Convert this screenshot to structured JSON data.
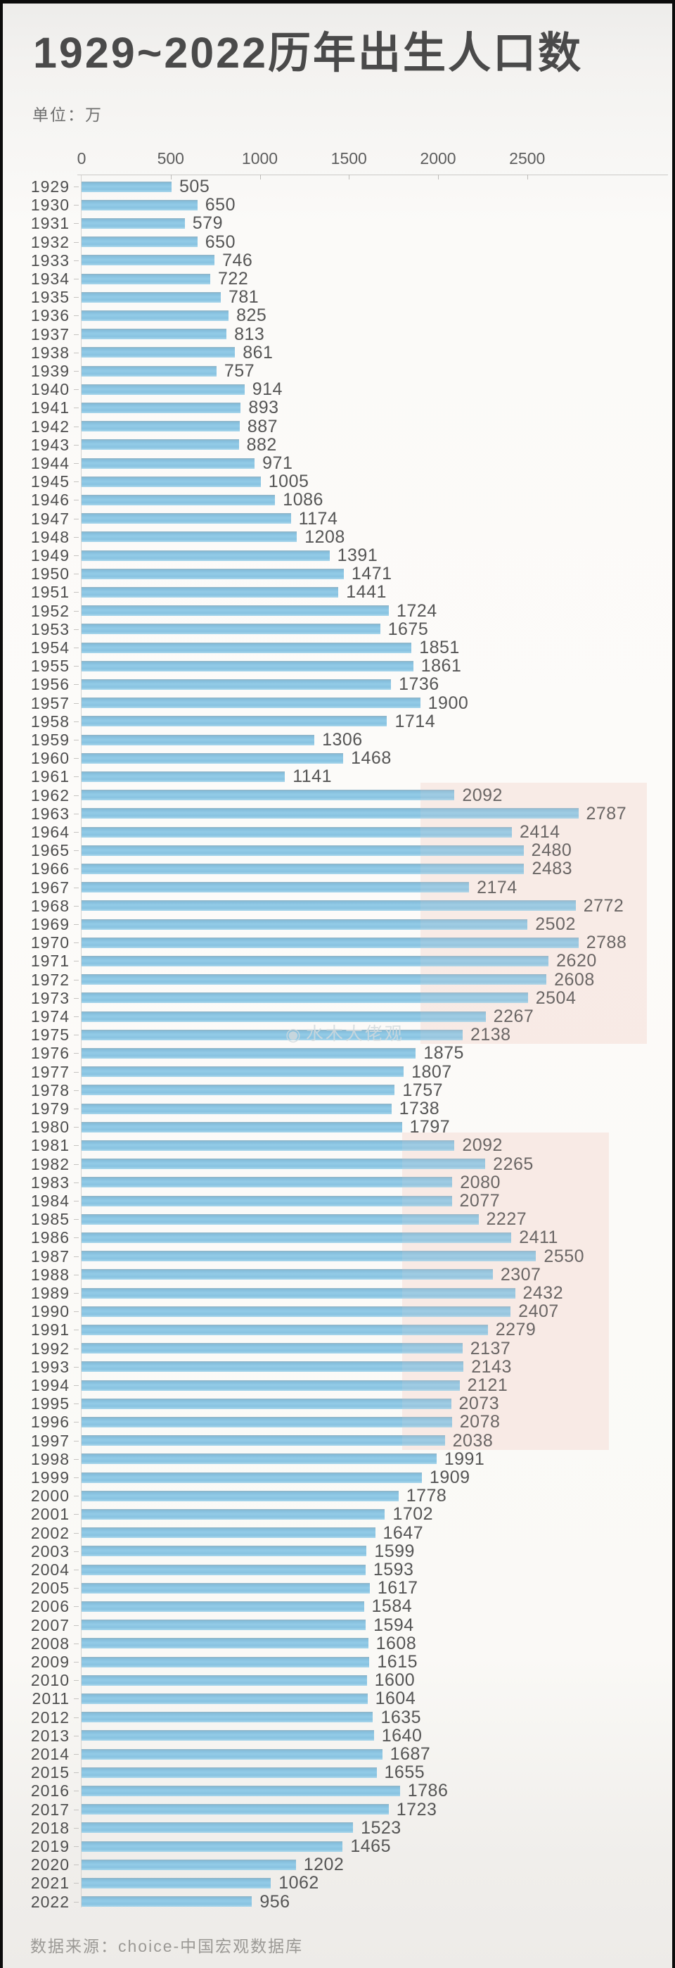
{
  "title": "1929~2022历年出生人口数",
  "unit_label": "单位：万",
  "source": "数据来源：choice-中国宏观数据库",
  "watermark": {
    "icon": "weibo-eye-icon",
    "text": "水木大佬观"
  },
  "colors": {
    "bar": "#8cc6e2",
    "highlight": "#f7e2de",
    "title": "#4a4a4a",
    "label": "#555555"
  },
  "chart_data": {
    "type": "bar",
    "orientation": "horizontal",
    "title": "1929~2022历年出生人口数",
    "unit": "万",
    "xlim": [
      0,
      2500
    ],
    "x_ticks": [
      0,
      500,
      1000,
      1500,
      2000,
      2500
    ],
    "grid": false,
    "years": [
      1929,
      1930,
      1931,
      1932,
      1933,
      1934,
      1935,
      1936,
      1937,
      1938,
      1939,
      1940,
      1941,
      1942,
      1943,
      1944,
      1945,
      1946,
      1947,
      1948,
      1949,
      1950,
      1951,
      1952,
      1953,
      1954,
      1955,
      1956,
      1957,
      1958,
      1959,
      1960,
      1961,
      1962,
      1963,
      1964,
      1965,
      1966,
      1967,
      1968,
      1969,
      1970,
      1971,
      1972,
      1973,
      1974,
      1975,
      1976,
      1977,
      1978,
      1979,
      1980,
      1981,
      1982,
      1983,
      1984,
      1985,
      1986,
      1987,
      1988,
      1989,
      1990,
      1991,
      1992,
      1993,
      1994,
      1995,
      1996,
      1997,
      1998,
      1999,
      2000,
      2001,
      2002,
      2003,
      2004,
      2005,
      2006,
      2007,
      2008,
      2009,
      2010,
      2011,
      2012,
      2013,
      2014,
      2015,
      2016,
      2017,
      2018,
      2019,
      2020,
      2021,
      2022
    ],
    "values": [
      505,
      650,
      579,
      650,
      746,
      722,
      781,
      825,
      813,
      861,
      757,
      914,
      893,
      887,
      882,
      971,
      1005,
      1086,
      1174,
      1208,
      1391,
      1471,
      1441,
      1724,
      1675,
      1851,
      1861,
      1736,
      1900,
      1714,
      1306,
      1468,
      1141,
      2092,
      2787,
      2414,
      2480,
      2483,
      2174,
      2772,
      2502,
      2788,
      2620,
      2608,
      2504,
      2267,
      2138,
      1875,
      1807,
      1757,
      1738,
      1797,
      2092,
      2265,
      2080,
      2077,
      2227,
      2411,
      2550,
      2307,
      2432,
      2407,
      2279,
      2137,
      2143,
      2121,
      2073,
      2078,
      2038,
      1991,
      1909,
      1778,
      1702,
      1647,
      1599,
      1593,
      1617,
      1584,
      1594,
      1608,
      1615,
      1600,
      1604,
      1635,
      1640,
      1687,
      1655,
      1786,
      1723,
      1523,
      1465,
      1202,
      1062,
      956
    ],
    "highlights": [
      {
        "from_year": 1962,
        "to_year": 1975,
        "from_value": 1900,
        "to_value": 3170
      },
      {
        "from_year": 1981,
        "to_year": 1997,
        "from_value": 1800,
        "to_value": 2960
      }
    ]
  }
}
